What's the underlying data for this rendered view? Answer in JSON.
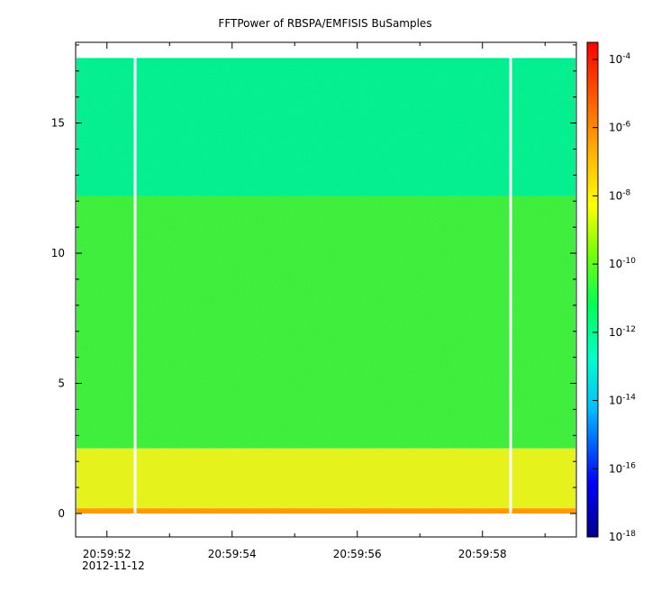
{
  "chart_data": {
    "type": "heatmap",
    "title": "FFTPower of RBSPA/EMFISIS  BuSamples",
    "xlabel": "",
    "ylabel": "",
    "x_ticks": [
      "20:59:52",
      "20:59:54",
      "20:59:56",
      "20:59:58"
    ],
    "x_date_label": "2012-11-12",
    "x_range_seconds": [
      51.5,
      59.5
    ],
    "y_ticks": [
      "0",
      "5",
      "10",
      "15"
    ],
    "ylim": [
      -0.9,
      18.1
    ],
    "y_data_top": 17.5,
    "colorbar": {
      "scale": "log",
      "range": [
        "1e-18",
        "1e-3.5"
      ],
      "ticks": [
        "-4",
        "-6",
        "-8",
        "-10",
        "-12",
        "-14",
        "-16",
        "-18"
      ],
      "colors": [
        "#00008b",
        "#0000ff",
        "#00bfff",
        "#00ffcc",
        "#00ff55",
        "#7fff00",
        "#ffff00",
        "#ffc000",
        "#ff6000",
        "#ff0000"
      ]
    },
    "bands": [
      {
        "y_from": 12.2,
        "y_to": 17.5,
        "level": "1e-13",
        "color": "#00ef90"
      },
      {
        "y_from": 2.5,
        "y_to": 12.2,
        "level": "1e-11",
        "color": "#3cee3c"
      },
      {
        "y_from": 0.2,
        "y_to": 2.5,
        "level": "1e-9",
        "color": "#e6f21a"
      },
      {
        "y_from": 0.0,
        "y_to": 0.2,
        "level": "1e-7",
        "color": "#ff9a00"
      }
    ],
    "data_gaps_seconds": [
      52.45,
      58.45
    ],
    "grid": false
  }
}
